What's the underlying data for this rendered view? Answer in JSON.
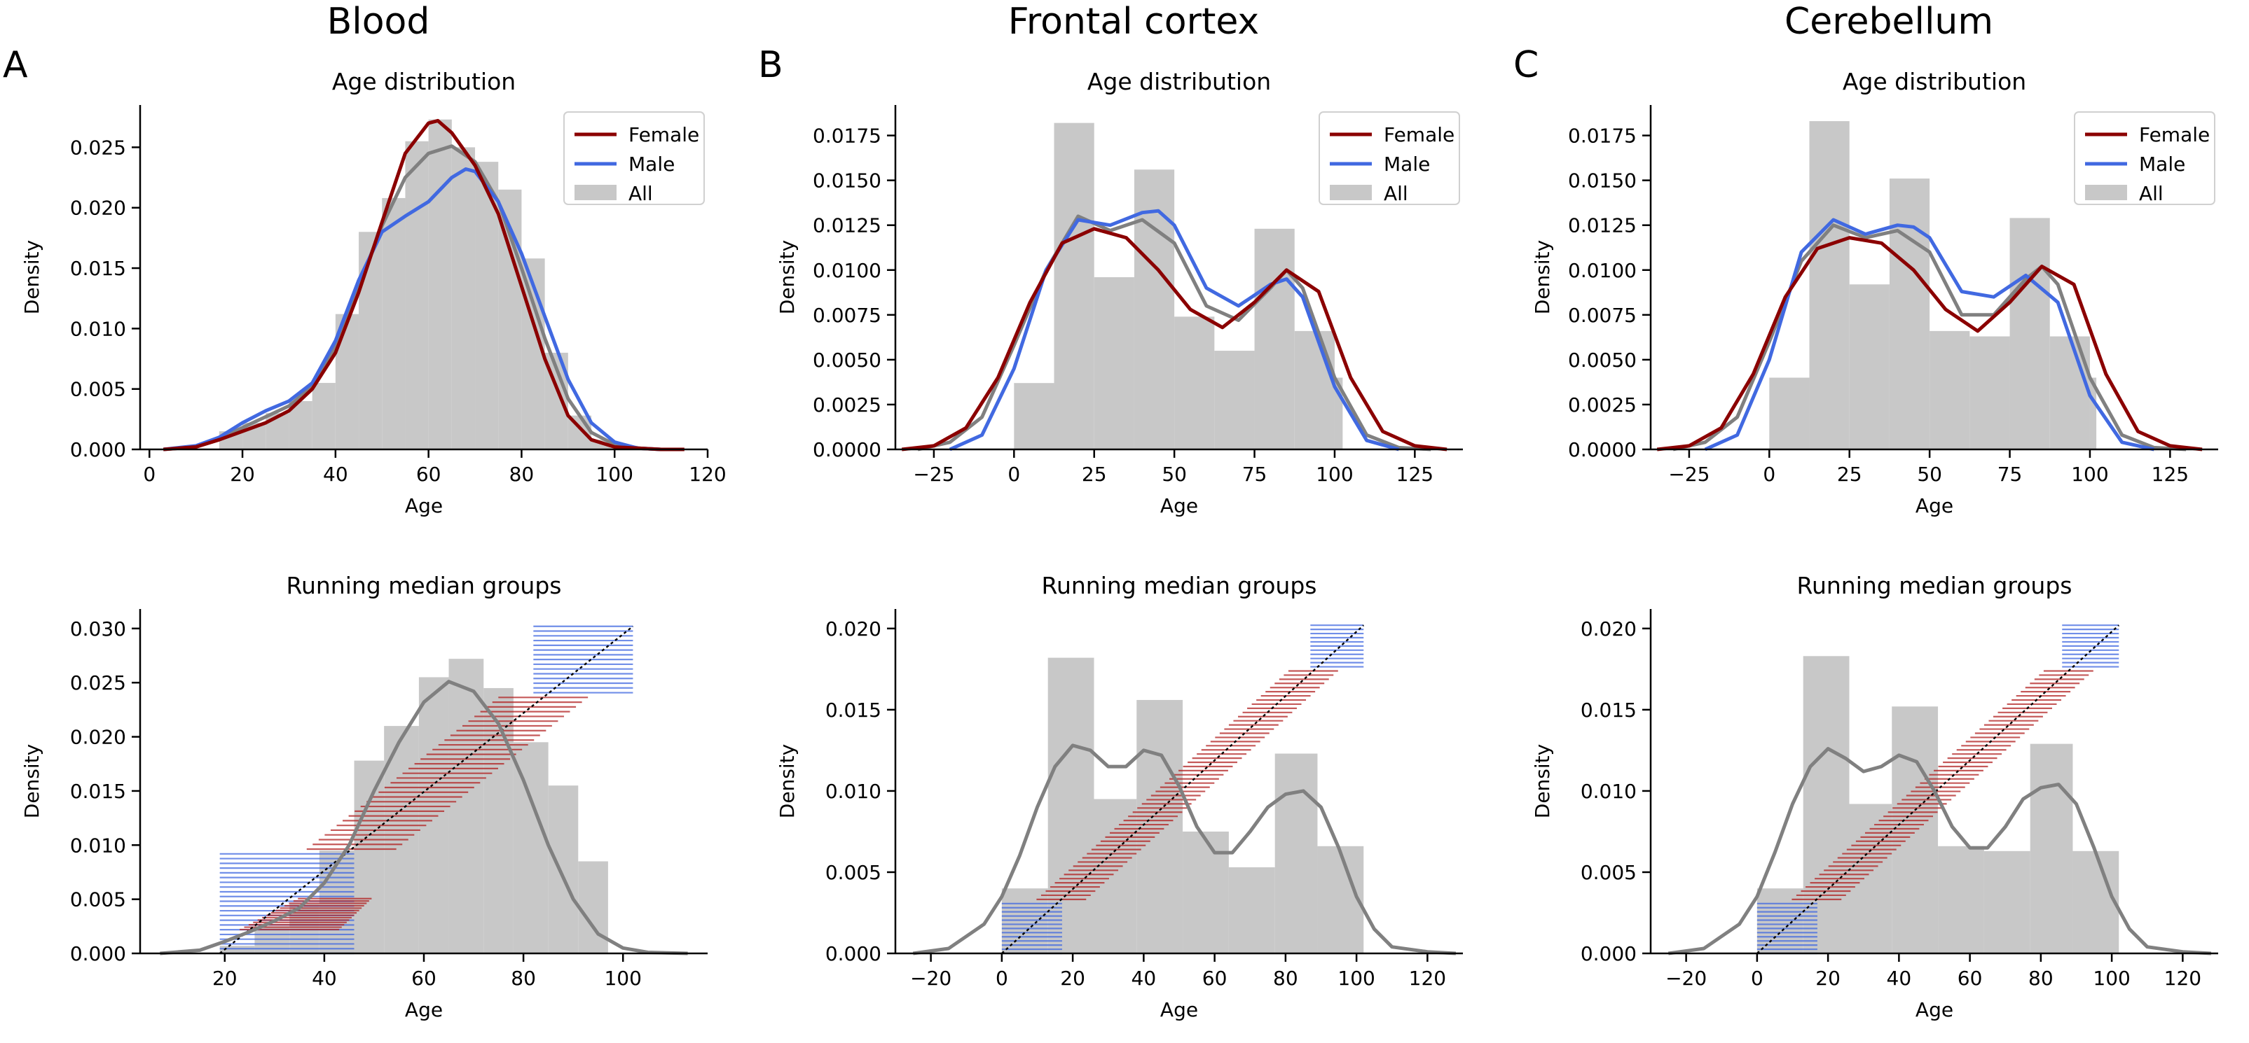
{
  "colors": {
    "female": "#8b0000",
    "male": "#4169e1",
    "all_kde": "#808080",
    "hist": "#c8c8c8",
    "band_red": "#b22222",
    "band_blue": "#4169e1",
    "diagonal": "#000000"
  },
  "columns": [
    {
      "letter": "A",
      "title": "Blood"
    },
    {
      "letter": "B",
      "title": "Frontal cortex"
    },
    {
      "letter": "C",
      "title": "Cerebellum"
    }
  ],
  "chart_data": [
    {
      "type": "area",
      "panel": "A-top",
      "title": "Age distribution",
      "xlabel": "Age",
      "ylabel": "Density",
      "xlim": [
        -2,
        120
      ],
      "ylim": [
        0,
        0.0285
      ],
      "xticks": [
        0,
        20,
        40,
        60,
        80,
        100,
        120
      ],
      "yticks": [
        0.0,
        0.005,
        0.01,
        0.015,
        0.02,
        0.025
      ],
      "ytick_decimals": 3,
      "legend": {
        "position": "top-right",
        "entries": [
          "Female",
          "Male",
          "All"
        ]
      },
      "hist": {
        "edges": [
          15,
          20,
          25,
          30,
          35,
          40,
          45,
          50,
          55,
          60,
          65,
          70,
          75,
          80,
          85,
          90,
          95,
          100,
          105
        ],
        "values": [
          0.0015,
          0.0022,
          0.003,
          0.004,
          0.0055,
          0.0112,
          0.018,
          0.0208,
          0.0255,
          0.0273,
          0.025,
          0.0238,
          0.0215,
          0.0158,
          0.008,
          0.0028,
          0.0008,
          0.0003
        ]
      },
      "series": [
        {
          "name": "Female",
          "color": "#8b0000",
          "x": [
            3,
            10,
            15,
            20,
            25,
            30,
            35,
            40,
            45,
            50,
            55,
            60,
            62,
            65,
            70,
            75,
            80,
            85,
            90,
            95,
            100,
            105,
            110,
            115
          ],
          "y": [
            0,
            0.0002,
            0.0008,
            0.0015,
            0.0022,
            0.0032,
            0.005,
            0.008,
            0.013,
            0.0188,
            0.0245,
            0.027,
            0.0272,
            0.0262,
            0.0235,
            0.0195,
            0.0135,
            0.0075,
            0.0028,
            0.0008,
            0.0002,
            0.0001,
            0,
            0
          ]
        },
        {
          "name": "Male",
          "color": "#4169e1",
          "x": [
            3,
            10,
            15,
            20,
            25,
            30,
            35,
            40,
            45,
            50,
            55,
            60,
            65,
            68,
            70,
            75,
            80,
            85,
            90,
            95,
            100,
            105,
            110
          ],
          "y": [
            0,
            0.0003,
            0.001,
            0.0022,
            0.0032,
            0.004,
            0.0055,
            0.009,
            0.014,
            0.018,
            0.0193,
            0.0205,
            0.0225,
            0.0232,
            0.023,
            0.0205,
            0.0162,
            0.011,
            0.0058,
            0.0022,
            0.0006,
            0.0001,
            0
          ]
        },
        {
          "name": "All",
          "color": "#808080",
          "x": [
            3,
            10,
            15,
            20,
            25,
            30,
            35,
            40,
            45,
            50,
            55,
            60,
            65,
            70,
            75,
            80,
            85,
            90,
            95,
            100,
            105,
            110
          ],
          "y": [
            0,
            0.0002,
            0.0009,
            0.0018,
            0.0027,
            0.0036,
            0.0052,
            0.0085,
            0.0135,
            0.0185,
            0.0225,
            0.0245,
            0.0251,
            0.0238,
            0.0205,
            0.015,
            0.0092,
            0.0042,
            0.0014,
            0.0004,
            0.0001,
            0
          ]
        }
      ]
    },
    {
      "type": "area",
      "panel": "B-top",
      "title": "Age distribution",
      "xlabel": "Age",
      "ylabel": "Density",
      "xlim": [
        -37,
        140
      ],
      "ylim": [
        0,
        0.0192
      ],
      "xticks": [
        -25,
        0,
        25,
        50,
        75,
        100,
        125
      ],
      "yticks": [
        0.0,
        0.0025,
        0.005,
        0.0075,
        0.01,
        0.0125,
        0.015,
        0.0175
      ],
      "ytick_decimals": 4,
      "legend": {
        "position": "top-right",
        "entries": [
          "Female",
          "Male",
          "All"
        ]
      },
      "hist": {
        "edges": [
          0,
          12.5,
          25,
          37.5,
          50,
          62.5,
          75,
          87.5,
          100,
          102.5
        ],
        "values": [
          0.0037,
          0.0182,
          0.0096,
          0.0156,
          0.0074,
          0.0055,
          0.0123,
          0.0066,
          0.004
        ]
      },
      "series": [
        {
          "name": "Female",
          "color": "#8b0000",
          "x": [
            -35,
            -25,
            -15,
            -5,
            5,
            15,
            25,
            35,
            45,
            55,
            65,
            75,
            85,
            95,
            105,
            115,
            125,
            135
          ],
          "y": [
            0,
            0.0002,
            0.0012,
            0.004,
            0.0082,
            0.0115,
            0.0123,
            0.0118,
            0.01,
            0.0078,
            0.0068,
            0.0082,
            0.01,
            0.0088,
            0.004,
            0.001,
            0.0002,
            0
          ]
        },
        {
          "name": "Male",
          "color": "#4169e1",
          "x": [
            -20,
            -10,
            0,
            10,
            20,
            30,
            40,
            45,
            50,
            60,
            70,
            80,
            85,
            90,
            100,
            110,
            120
          ],
          "y": [
            0,
            0.0008,
            0.0045,
            0.01,
            0.0128,
            0.0125,
            0.0132,
            0.0133,
            0.0125,
            0.009,
            0.008,
            0.0092,
            0.0095,
            0.0085,
            0.0035,
            0.0005,
            0
          ]
        },
        {
          "name": "All",
          "color": "#808080",
          "x": [
            -30,
            -20,
            -10,
            0,
            10,
            20,
            30,
            40,
            50,
            60,
            70,
            80,
            85,
            90,
            100,
            110,
            120,
            130
          ],
          "y": [
            0,
            0.0004,
            0.0018,
            0.0058,
            0.01,
            0.013,
            0.0122,
            0.0128,
            0.0115,
            0.008,
            0.0072,
            0.009,
            0.01,
            0.009,
            0.004,
            0.0008,
            0.0001,
            0
          ]
        }
      ]
    },
    {
      "type": "area",
      "panel": "C-top",
      "title": "Age distribution",
      "xlabel": "Age",
      "ylabel": "Density",
      "xlim": [
        -37,
        140
      ],
      "ylim": [
        0,
        0.0192
      ],
      "xticks": [
        -25,
        0,
        25,
        50,
        75,
        100,
        125
      ],
      "yticks": [
        0.0,
        0.0025,
        0.005,
        0.0075,
        0.01,
        0.0125,
        0.015,
        0.0175
      ],
      "ytick_decimals": 4,
      "legend": {
        "position": "top-right",
        "entries": [
          "Female",
          "Male",
          "All"
        ]
      },
      "hist": {
        "edges": [
          0,
          12.5,
          25,
          37.5,
          50,
          62.5,
          75,
          87.5,
          100,
          102
        ],
        "values": [
          0.004,
          0.0183,
          0.0092,
          0.0151,
          0.0066,
          0.0063,
          0.0129,
          0.0063,
          0.004
        ]
      },
      "series": [
        {
          "name": "Female",
          "color": "#8b0000",
          "x": [
            -35,
            -25,
            -15,
            -5,
            5,
            15,
            25,
            35,
            45,
            55,
            65,
            75,
            85,
            95,
            105,
            115,
            125,
            135
          ],
          "y": [
            0,
            0.0002,
            0.0012,
            0.0042,
            0.0085,
            0.0112,
            0.0118,
            0.0115,
            0.01,
            0.0078,
            0.0066,
            0.0082,
            0.0102,
            0.0092,
            0.0042,
            0.001,
            0.0002,
            0
          ]
        },
        {
          "name": "Male",
          "color": "#4169e1",
          "x": [
            -20,
            -10,
            0,
            10,
            20,
            30,
            40,
            45,
            50,
            60,
            70,
            80,
            90,
            100,
            110,
            120
          ],
          "y": [
            0,
            0.0008,
            0.005,
            0.011,
            0.0128,
            0.012,
            0.0125,
            0.0124,
            0.0118,
            0.0088,
            0.0085,
            0.0097,
            0.0082,
            0.003,
            0.0004,
            0
          ]
        },
        {
          "name": "All",
          "color": "#808080",
          "x": [
            -30,
            -20,
            -10,
            0,
            10,
            20,
            30,
            40,
            50,
            60,
            70,
            80,
            85,
            90,
            100,
            110,
            120,
            130
          ],
          "y": [
            0,
            0.0004,
            0.0018,
            0.006,
            0.0105,
            0.0125,
            0.0118,
            0.0122,
            0.011,
            0.0075,
            0.0075,
            0.0095,
            0.0102,
            0.0092,
            0.004,
            0.0008,
            0.0001,
            0
          ]
        }
      ]
    },
    {
      "type": "area",
      "panel": "A-bottom",
      "title": "Running median groups",
      "xlabel": "Age",
      "ylabel": "Density",
      "xlim": [
        3,
        117
      ],
      "ylim": [
        0,
        0.0318
      ],
      "xticks": [
        20,
        40,
        60,
        80,
        100
      ],
      "yticks": [
        0.0,
        0.005,
        0.01,
        0.015,
        0.02,
        0.025,
        0.03
      ],
      "ytick_decimals": 3,
      "hist": {
        "edges": [
          19,
          26,
          33,
          39,
          46,
          52,
          59,
          65,
          72,
          78,
          85,
          91,
          97
        ],
        "values": [
          0.0007,
          0.0025,
          0.0046,
          0.0095,
          0.0178,
          0.021,
          0.0255,
          0.0272,
          0.0245,
          0.0195,
          0.0155,
          0.0085
        ]
      },
      "kde": {
        "color": "#808080",
        "x": [
          7,
          15,
          20,
          25,
          30,
          35,
          40,
          45,
          50,
          55,
          60,
          65,
          70,
          75,
          80,
          85,
          90,
          95,
          100,
          105,
          113
        ],
        "y": [
          0,
          0.0003,
          0.0011,
          0.002,
          0.003,
          0.0042,
          0.0065,
          0.01,
          0.015,
          0.0195,
          0.0232,
          0.0251,
          0.0242,
          0.0212,
          0.016,
          0.01,
          0.005,
          0.0018,
          0.0005,
          0.0001,
          0
        ]
      },
      "diagonal": {
        "x": [
          19,
          102
        ],
        "y": [
          0,
          0.0302
        ]
      },
      "groups": {
        "age_min": 19,
        "age_max": 102,
        "blue_low_until": 45,
        "blue_high_from": 84,
        "n_bands": 70,
        "spread_mid": 9,
        "spread_low": 26,
        "spread_high": 18
      }
    },
    {
      "type": "area",
      "panel": "B-bottom",
      "title": "Running median groups",
      "xlabel": "Age",
      "ylabel": "Density",
      "xlim": [
        -30,
        130
      ],
      "ylim": [
        0,
        0.0212
      ],
      "xticks": [
        -20,
        0,
        20,
        40,
        60,
        80,
        100,
        120
      ],
      "yticks": [
        0.0,
        0.005,
        0.01,
        0.015,
        0.02
      ],
      "ytick_decimals": 3,
      "hist": {
        "edges": [
          0,
          13,
          26,
          38,
          51,
          64,
          77,
          89,
          102
        ],
        "values": [
          0.004,
          0.0182,
          0.0095,
          0.0156,
          0.0075,
          0.0053,
          0.0123,
          0.0066
        ]
      },
      "kde": {
        "color": "#808080",
        "x": [
          -25,
          -15,
          -5,
          0,
          5,
          10,
          15,
          20,
          25,
          30,
          35,
          40,
          45,
          50,
          55,
          60,
          65,
          70,
          75,
          80,
          85,
          90,
          95,
          100,
          105,
          110,
          120,
          128
        ],
        "y": [
          0,
          0.0003,
          0.0018,
          0.0035,
          0.006,
          0.009,
          0.0115,
          0.0128,
          0.0125,
          0.0115,
          0.0115,
          0.0125,
          0.0122,
          0.0103,
          0.0078,
          0.0062,
          0.0062,
          0.0075,
          0.009,
          0.0098,
          0.01,
          0.009,
          0.0065,
          0.0035,
          0.0015,
          0.0004,
          0.0001,
          0
        ]
      },
      "diagonal": {
        "x": [
          0,
          102
        ],
        "y": [
          0,
          0.0202
        ]
      },
      "groups": {
        "age_min": 0,
        "age_max": 102,
        "blue_low_until": 16,
        "blue_high_from": 89,
        "n_bands": 80,
        "spread_mid": 7,
        "spread_low": 14,
        "spread_high": 12
      }
    },
    {
      "type": "area",
      "panel": "C-bottom",
      "title": "Running median groups",
      "xlabel": "Age",
      "ylabel": "Density",
      "xlim": [
        -30,
        130
      ],
      "ylim": [
        0,
        0.0212
      ],
      "xticks": [
        -20,
        0,
        20,
        40,
        60,
        80,
        100,
        120
      ],
      "yticks": [
        0.0,
        0.005,
        0.01,
        0.015,
        0.02
      ],
      "ytick_decimals": 3,
      "hist": {
        "edges": [
          0,
          13,
          26,
          38,
          51,
          64,
          77,
          89,
          102
        ],
        "values": [
          0.004,
          0.0183,
          0.0092,
          0.0152,
          0.0066,
          0.0063,
          0.0129,
          0.0063
        ]
      },
      "kde": {
        "color": "#808080",
        "x": [
          -25,
          -15,
          -5,
          0,
          5,
          10,
          15,
          20,
          25,
          30,
          35,
          40,
          45,
          50,
          55,
          60,
          65,
          70,
          75,
          80,
          85,
          90,
          95,
          100,
          105,
          110,
          120,
          128
        ],
        "y": [
          0,
          0.0003,
          0.0018,
          0.0035,
          0.0062,
          0.0092,
          0.0115,
          0.0126,
          0.012,
          0.0112,
          0.0115,
          0.0122,
          0.0118,
          0.01,
          0.0078,
          0.0065,
          0.0065,
          0.0078,
          0.0095,
          0.0102,
          0.0104,
          0.0092,
          0.0065,
          0.0035,
          0.0015,
          0.0004,
          0.0001,
          0
        ]
      },
      "diagonal": {
        "x": [
          0,
          102
        ],
        "y": [
          0,
          0.0202
        ]
      },
      "groups": {
        "age_min": 0,
        "age_max": 102,
        "blue_low_until": 16,
        "blue_high_from": 88,
        "n_bands": 80,
        "spread_mid": 7,
        "spread_low": 14,
        "spread_high": 12
      }
    }
  ]
}
